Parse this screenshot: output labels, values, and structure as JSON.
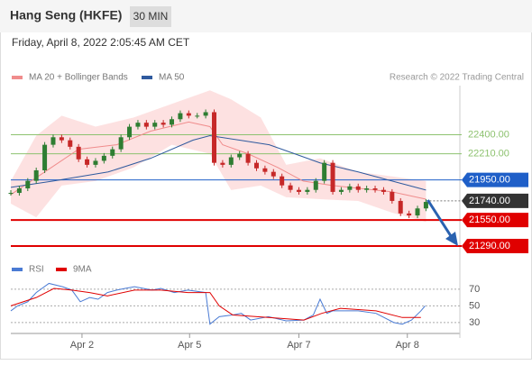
{
  "header": {
    "title": "Hang Seng (HKFE)",
    "timeframe": "30 MIN",
    "timestamp": "Friday, April 8, 2022 2:05:45 AM CET"
  },
  "chart_data": [
    {
      "type": "candlestick",
      "credit": "Research © 2022 Trading Central",
      "x": [
        0,
        1,
        2,
        3,
        4,
        5,
        6,
        7,
        8,
        9,
        10,
        11,
        12,
        13,
        14,
        15,
        16,
        17,
        18,
        19,
        20,
        21,
        22,
        23,
        24,
        25,
        26,
        27,
        28,
        29,
        30,
        31,
        32,
        33,
        34,
        35,
        36,
        37,
        38,
        39,
        40,
        41,
        42,
        43,
        44,
        45,
        46,
        47,
        48,
        49
      ],
      "close": [
        21820,
        21865,
        21940,
        22045,
        22300,
        22375,
        22345,
        22280,
        22155,
        22100,
        22140,
        22190,
        22255,
        22375,
        22480,
        22520,
        22480,
        22520,
        22500,
        22555,
        22615,
        22590,
        22590,
        22625,
        22120,
        22100,
        22175,
        22210,
        22120,
        22065,
        22030,
        21985,
        21895,
        21850,
        21830,
        21850,
        21940,
        22120,
        21830,
        21850,
        21885,
        21850,
        21865,
        21850,
        21830,
        21740,
        21615,
        21595,
        21665,
        21730
      ],
      "up_color": "#2e7d32",
      "down_color": "#c62828",
      "bands": {
        "color": "#fcdada",
        "x": [
          0,
          3,
          6,
          10,
          14.5,
          19,
          23.5,
          26,
          29.5,
          32.5,
          36.5,
          41,
          45,
          49
        ],
        "upper": [
          21938,
          22391,
          22590,
          22481,
          22572,
          22708,
          22843,
          22753,
          22572,
          22100,
          22165,
          22029,
          21984,
          21938
        ],
        "lower": [
          21712,
          21576,
          21893,
          21938,
          22074,
          22300,
          22210,
          21848,
          21893,
          21776,
          21757,
          21739,
          21622,
          21531
        ]
      },
      "series": [
        {
          "name": "MA 20 + Bollinger Bands",
          "color": "#f08c8c",
          "x": [
            0,
            4,
            8,
            12.5,
            16.5,
            21,
            23.5,
            25,
            28,
            31.5,
            34.5,
            38,
            41,
            45,
            49
          ],
          "values": [
            21803,
            22029,
            22255,
            22300,
            22436,
            22527,
            22481,
            22300,
            22210,
            22074,
            21938,
            21893,
            21866,
            21830,
            21757
          ]
        },
        {
          "name": "MA 50",
          "color": "#2f5a9e",
          "x": [
            0,
            5,
            11.5,
            16.5,
            21.5,
            23.5,
            27,
            30.5,
            33.5,
            36.5,
            41,
            45,
            49
          ],
          "values": [
            21875,
            21938,
            22029,
            22165,
            22346,
            22391,
            22346,
            22300,
            22210,
            22119,
            22029,
            21938,
            21848
          ]
        }
      ],
      "levels": [
        {
          "value": 22400,
          "label": "22400.00",
          "color": "#8dc26f",
          "style": "plain"
        },
        {
          "value": 22210,
          "label": "22210.00",
          "color": "#8dc26f",
          "style": "plain"
        },
        {
          "value": 21950,
          "label": "21950.00",
          "color": "#1f5fc8",
          "style": "box"
        },
        {
          "value": 21740,
          "label": "21740.00",
          "color": "#333333",
          "style": "current"
        },
        {
          "value": 21550,
          "label": "21550.00",
          "color": "#e00000",
          "style": "box"
        },
        {
          "value": 21290,
          "label": "21290.00",
          "color": "#e00000",
          "style": "box"
        }
      ],
      "xlim": [
        0,
        53
      ],
      "ylim": [
        21200,
        22890
      ],
      "xticks": [
        {
          "value": 8.4,
          "label": "Apr 2"
        },
        {
          "value": 21.1,
          "label": "Apr 5"
        },
        {
          "value": 34,
          "label": "Apr 7"
        },
        {
          "value": 46.8,
          "label": "Apr 8"
        }
      ]
    },
    {
      "type": "line",
      "series": [
        {
          "name": "RSI",
          "color": "#4a7bd4",
          "x": [
            0,
            0.8,
            2,
            3,
            4.5,
            6.1,
            7.2,
            8.2,
            9.3,
            10.3,
            11.4,
            12.5,
            13.5,
            14.6,
            16.7,
            17.7,
            19.3,
            20.9,
            23,
            23.5,
            24.6,
            26.2,
            27.2,
            28.3,
            30.4,
            32.5,
            34.6,
            35.7,
            36.5,
            37.3,
            38,
            38.9,
            41,
            43.1,
            45.2,
            46.2,
            47.3,
            48.4,
            48.9
          ],
          "values": [
            44,
            50,
            55,
            66,
            77,
            73,
            69,
            55,
            60,
            58,
            66,
            69,
            71,
            73,
            69,
            71,
            66,
            69,
            66,
            28,
            37,
            39,
            41,
            33,
            37,
            32,
            33,
            39,
            58,
            41,
            44,
            44,
            44,
            41,
            30,
            28,
            33,
            44,
            50
          ]
        },
        {
          "name": "9MA",
          "color": "#e00000",
          "x": [
            0,
            3,
            5.1,
            7.2,
            9.3,
            11.4,
            14.6,
            17.7,
            20.9,
            23.5,
            24.6,
            26.2,
            30.4,
            34.6,
            36.7,
            38.9,
            43.1,
            46.2,
            48.4
          ],
          "values": [
            50,
            60,
            71,
            69,
            66,
            62,
            69,
            69,
            66,
            66,
            50,
            39,
            36,
            33,
            41,
            47,
            44,
            36,
            36
          ]
        }
      ],
      "xlim": [
        0,
        53
      ],
      "ylim": [
        19,
        84
      ],
      "yticks": [
        30,
        50,
        70
      ]
    }
  ]
}
